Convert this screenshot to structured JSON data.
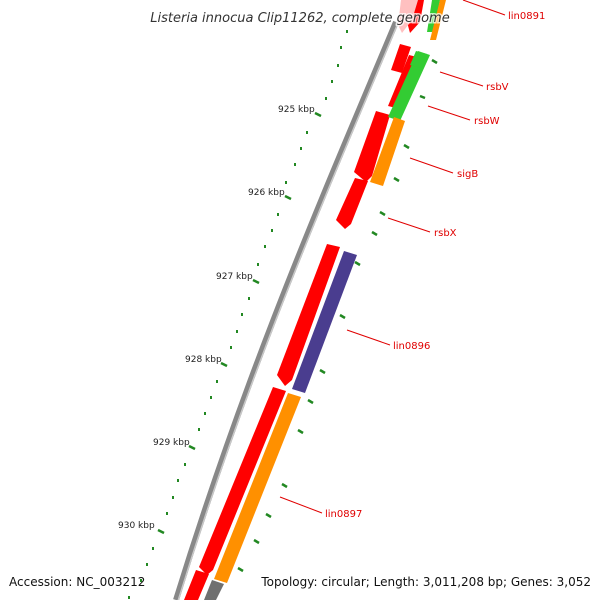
{
  "title": "Listeria innocua Clip11262, complete genome",
  "footer": {
    "accession": "Accession: NC_003212",
    "stats": "Topology: circular; Length: 3,011,208 bp; Genes: 3,052"
  },
  "colors": {
    "backbone": "#808080",
    "backbone_light": "#c8c8c8",
    "forward_cds": "#ff0000",
    "reverse_cds": "#ff9000",
    "green_feature": "#33cc33",
    "purple_feature": "#4a3d8f",
    "gray_feature": "#707070",
    "pink_feature": "#ffc0c0",
    "tick": "#228822",
    "label": "#e00000"
  },
  "scale_labels": [
    "925 kbp",
    "926 kbp",
    "927 kbp",
    "928 kbp",
    "929 kbp",
    "930 kbp"
  ],
  "gene_labels": [
    "lin0891",
    "rsbV",
    "rsbW",
    "sigB",
    "rsbX",
    "lin0896",
    "lin0897"
  ]
}
